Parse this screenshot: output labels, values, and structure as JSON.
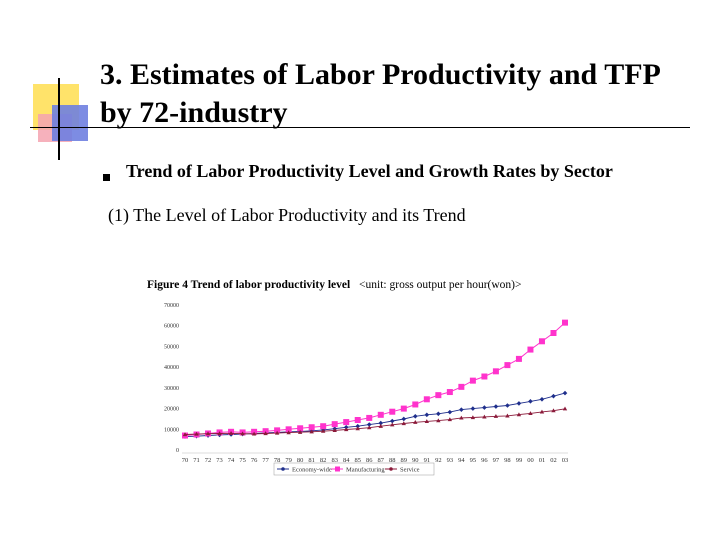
{
  "slide": {
    "title_line1": "3. Estimates of Labor Productivity and TFP",
    "title_line2": "by 72-industry",
    "bullet": "Trend of Labor Productivity Level and Growth Rates by Sector",
    "subheading": "(1) The Level of Labor Productivity and its Trend"
  },
  "colors": {
    "economy": "#1f2f8c",
    "manufacturing": "#ff33cc",
    "service": "#8b1a3a",
    "deco_yellow": "#ffe36a",
    "deco_blue": "#6f7fe0",
    "deco_pink": "#f5a3b0"
  },
  "chart_data": {
    "type": "line",
    "title": "Figure 4 Trend of labor productivity level",
    "unit_note": "<unit: gross output per hour(won)>",
    "categories": [
      "70",
      "71",
      "72",
      "73",
      "74",
      "75",
      "76",
      "77",
      "78",
      "79",
      "80",
      "81",
      "82",
      "83",
      "84",
      "85",
      "86",
      "87",
      "88",
      "89",
      "90",
      "91",
      "92",
      "93",
      "94",
      "95",
      "96",
      "97",
      "98",
      "99",
      "00",
      "01",
      "02",
      "03"
    ],
    "ylim": [
      0,
      70000
    ],
    "yticks": [
      "0",
      "10000",
      "20000",
      "30000",
      "40000",
      "50000",
      "60000",
      "70000"
    ],
    "grid": false,
    "legend_position": "bottom",
    "series": [
      {
        "name": "Economy-wide",
        "color": "#1f2f8c",
        "values": [
          6000,
          6200,
          6500,
          6800,
          7000,
          7200,
          7500,
          7800,
          8000,
          8300,
          8500,
          8800,
          9200,
          9800,
          10500,
          11000,
          11800,
          12500,
          13500,
          14500,
          15800,
          16500,
          17000,
          17800,
          19000,
          19500,
          20000,
          20500,
          21000,
          22000,
          23000,
          24000,
          25500,
          27000
        ]
      },
      {
        "name": "Manufacturing",
        "color": "#ff33cc",
        "values": [
          6500,
          7000,
          7500,
          8000,
          8300,
          8000,
          8300,
          8600,
          9000,
          9500,
          10000,
          10500,
          11000,
          12000,
          13000,
          14000,
          15000,
          16500,
          18000,
          19500,
          21500,
          24000,
          26000,
          27500,
          30000,
          33000,
          35000,
          37500,
          40500,
          43500,
          48000,
          52000,
          56000,
          61000
        ]
      },
      {
        "name": "Service",
        "color": "#8b1a3a",
        "values": [
          7000,
          7200,
          7400,
          7500,
          7600,
          7400,
          7300,
          7500,
          7700,
          7900,
          8100,
          8300,
          8600,
          9000,
          9400,
          9800,
          10300,
          11000,
          11700,
          12300,
          12900,
          13300,
          13700,
          14200,
          15000,
          15200,
          15500,
          15800,
          16000,
          16600,
          17200,
          17900,
          18500,
          19400
        ]
      }
    ]
  }
}
